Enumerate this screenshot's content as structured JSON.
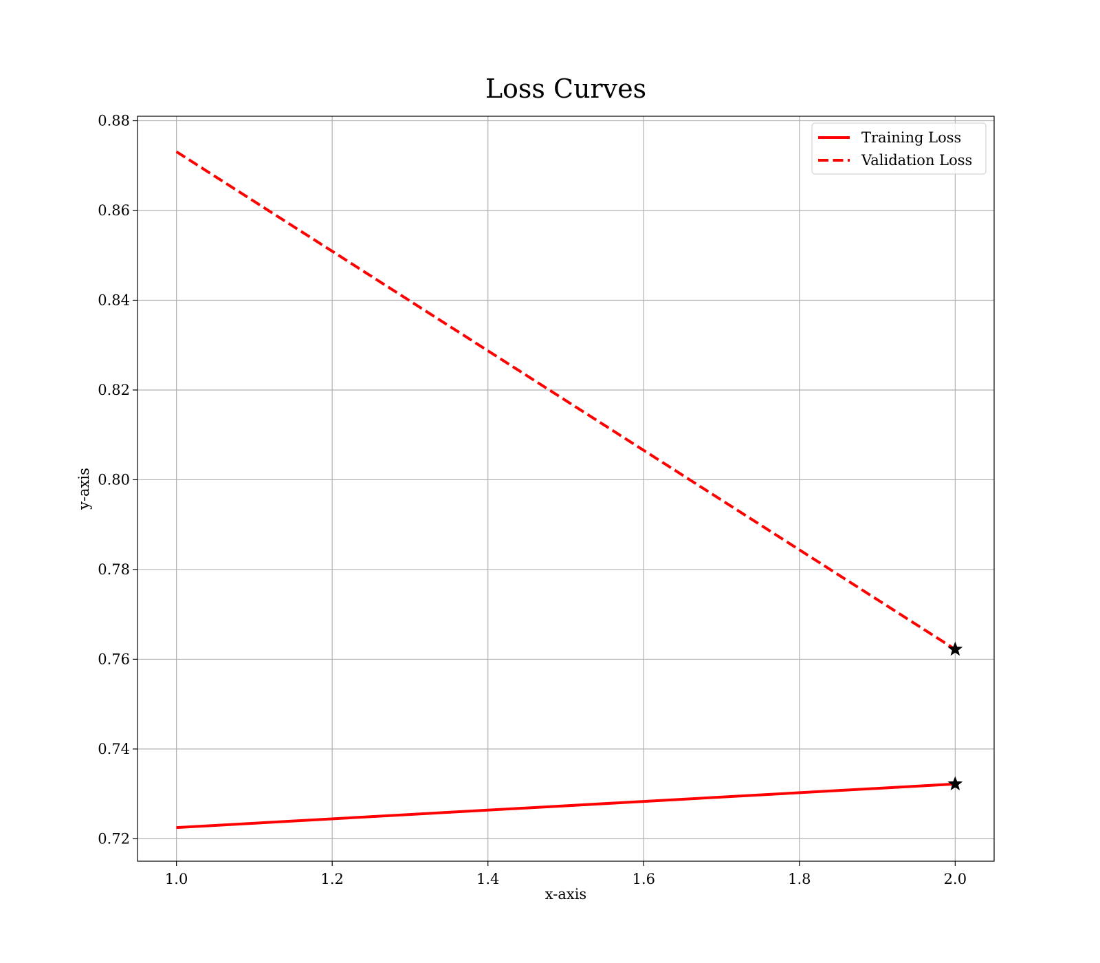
{
  "chart_data": {
    "type": "line",
    "title": "Loss Curves",
    "xlabel": "x-axis",
    "ylabel": "y-axis",
    "xlim": [
      0.95,
      2.05
    ],
    "ylim": [
      0.715,
      0.881
    ],
    "xticks": [
      1.0,
      1.2,
      1.4,
      1.6,
      1.8,
      2.0
    ],
    "xtick_labels": [
      "1.0",
      "1.2",
      "1.4",
      "1.6",
      "1.8",
      "2.0"
    ],
    "yticks": [
      0.72,
      0.74,
      0.76,
      0.78,
      0.8,
      0.82,
      0.84,
      0.86,
      0.88
    ],
    "ytick_labels": [
      "0.72",
      "0.74",
      "0.76",
      "0.78",
      "0.80",
      "0.82",
      "0.84",
      "0.86",
      "0.88"
    ],
    "grid": true,
    "legend_position": "top-right",
    "series": [
      {
        "name": "Training Loss",
        "x": [
          1,
          2
        ],
        "y": [
          0.7225,
          0.7322
        ],
        "color": "#ff0000",
        "line_style": "solid",
        "end_marker": "star",
        "marker_color": "#000000"
      },
      {
        "name": "Validation Loss",
        "x": [
          1,
          2
        ],
        "y": [
          0.8731,
          0.7622
        ],
        "color": "#ff0000",
        "line_style": "dashed",
        "end_marker": "star",
        "marker_color": "#000000"
      }
    ]
  }
}
